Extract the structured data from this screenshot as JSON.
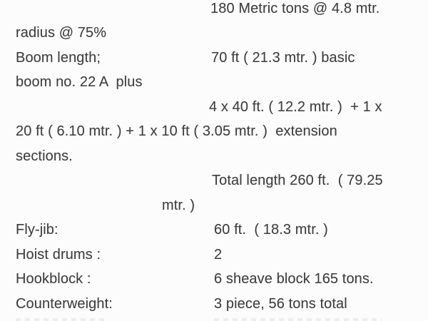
{
  "page": {
    "background_color": "#fcfcfc",
    "text_color": "#3f3f3f"
  },
  "document": {
    "lines": [
      {
        "text": "180 Metric tons @ 4.8 mtr."
      },
      {
        "text": "radius @ 75%"
      },
      {
        "text": "Boom length;"
      },
      {
        "text": "70 ft ( 21.3 mtr. ) basic"
      },
      {
        "text": "boom no. 22 A  plus"
      },
      {
        "text": "4 x 40 ft. ( 12.2 mtr. )  + 1 x"
      },
      {
        "text": "20 ft ( 6.10 mtr. ) + 1 x 10 ft ( 3.05 mtr. )  extension"
      },
      {
        "text": "sections."
      },
      {
        "text": "Total length 260 ft.  ( 79.25"
      },
      {
        "text": "mtr. )"
      },
      {
        "text": "Fly-jib:"
      },
      {
        "text": "60 ft.  ( 18.3 mtr. )"
      },
      {
        "text": "Hoist drums :"
      },
      {
        "text": "2"
      },
      {
        "text": "Hookblock :"
      },
      {
        "text": "6 sheave block 165 tons."
      },
      {
        "text": "Counterweight:"
      },
      {
        "text": "3 piece, 56 tons total"
      }
    ],
    "rows": [
      {
        "label": "",
        "value": "180 Metric tons @ 4.8 mtr. radius @ 75%"
      },
      {
        "label": "Boom length;",
        "value": "70 ft ( 21.3 mtr. ) basic boom no. 22 A  plus"
      },
      {
        "label": "",
        "value": "4 x 40 ft. ( 12.2 mtr. )  + 1 x 20 ft ( 6.10 mtr. ) + 1 x 10 ft ( 3.05 mtr. )  extension sections."
      },
      {
        "label": "",
        "value": "Total length 260 ft.  ( 79.25 mtr. )"
      },
      {
        "label": "Fly-jib:",
        "value": "60 ft.  ( 18.3 mtr. )"
      },
      {
        "label": "Hoist drums :",
        "value": "2"
      },
      {
        "label": "Hookblock :",
        "value": "6 sheave block 165 tons."
      },
      {
        "label": "Counterweight:",
        "value": "3 piece, 56 tons total"
      }
    ]
  }
}
